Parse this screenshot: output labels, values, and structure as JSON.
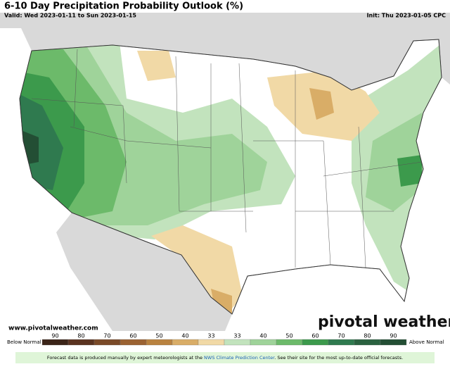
{
  "header": {
    "title": "6-10 Day Precipitation Probability Outlook (%)",
    "valid": "Valid: Wed 2023-01-11 to Sun 2023-01-15",
    "init": "Init: Thu 2023-01-05 CPC"
  },
  "watermark": "www.pivotalweather.com",
  "logo": "pivotal weather",
  "legend": {
    "below": "Below Normal",
    "above": "Above Normal",
    "below_levels": [
      90,
      80,
      70,
      60,
      50,
      40,
      33
    ],
    "below_colors": [
      "#3b2418",
      "#5a3320",
      "#7a4a28",
      "#9b6232",
      "#b98240",
      "#d9ad67",
      "#f1d9a6"
    ],
    "above_levels": [
      33,
      40,
      50,
      60,
      70,
      80,
      90
    ],
    "above_colors": [
      "#c2e3bd",
      "#9fd39a",
      "#6cba6a",
      "#3c9a4c",
      "#2f7a4f",
      "#2a6140",
      "#234e34"
    ]
  },
  "footer": {
    "before": "Forecast data is produced manually by expert meteorologists at the ",
    "link": "NWS Climate Prediction Center",
    "after": ". See their site for the most up-to-date official forecasts."
  }
}
